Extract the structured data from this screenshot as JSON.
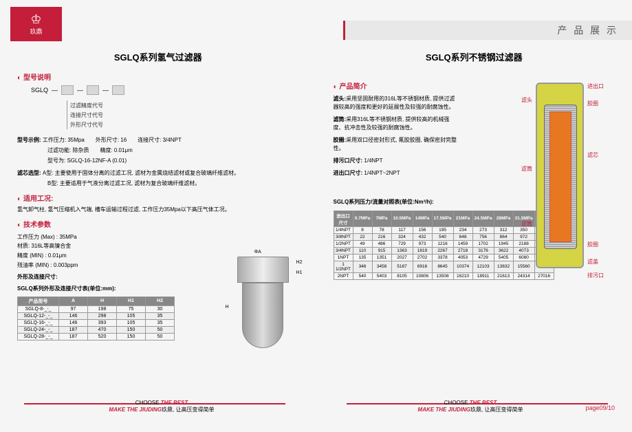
{
  "header": {
    "logo_text": "玖鼎",
    "title": "产 品 展 示"
  },
  "left": {
    "title": "SGLQ系列氢气过滤器",
    "s1": "型号说明",
    "model_prefix": "SGLQ",
    "model_labels": [
      "过滤精度代号",
      "连接尺寸代号",
      "外形尺寸代号"
    ],
    "example_label": "型号示例:",
    "example_lines": [
      "工作压力: 35Mpa　　外形尺寸: 16　　连接尺寸: 3/4NPT",
      "过滤功能: 除杂质　　精度: 0.01μm",
      "型号为: SGLQ-16-12NF-A (0.01)"
    ],
    "cartridge_label": "滤芯选型:",
    "cartridge_a": "A型: 主要使用于固体分离的过滤工况, 滤材为金属烧结滤材或复合玻璃纤维滤材。",
    "cartridge_b": "B型: 主要适用于气液分离过滤工况, 滤材为复合玻璃纤维滤材。",
    "s2": "适用工况:",
    "usage": "氢气卸气柱, 氢气压缩机入气端, 槽车运输过程过滤, 工作压力35Mpa以下高压气体工况。",
    "s3": "技术参数",
    "params": [
      "工作压力 (Max) : 35MPa",
      "材质: 316L等高镍合金",
      "精度 (MIN) : 0.01μm",
      "残油率 (MIN) : 0.003ppm"
    ],
    "dim_title": "外形及连接尺寸:",
    "dim_table_title": "SGLQ系列外形及连接尺寸表(单位:mm):",
    "dim_headers": [
      "产品型号",
      "A",
      "H",
      "H1",
      "H2"
    ],
    "dim_rows": [
      [
        "SGLQ-8-_-_",
        "97",
        "198",
        "75",
        "30"
      ],
      [
        "SGLQ-12-_-_",
        "146",
        "298",
        "105",
        "35"
      ],
      [
        "SGLQ-16-_-_",
        "146",
        "393",
        "105",
        "35"
      ],
      [
        "SGLQ-24-_-_",
        "187",
        "470",
        "150",
        "50"
      ],
      [
        "SGLQ-28-_-_",
        "187",
        "520",
        "150",
        "50"
      ]
    ],
    "part_labels": {
      "a": "ΦA",
      "h": "H",
      "h1": "H1",
      "h2": "H2"
    }
  },
  "right": {
    "title": "SGLQ系列不锈钢过滤器",
    "s1": "产品简介",
    "desc": [
      {
        "b": "滤头:",
        "t": "采用坚固耐用的316L等不锈钢材质, 提供过滤器较高的强度和更好的延展性及较强的耐腐蚀性。"
      },
      {
        "b": "滤筒:",
        "t": "采用316L等不锈钢材质, 提供较高的机械强度、抗冲击性及较强的耐腐蚀性。"
      },
      {
        "b": "胶圈:",
        "t": "采用双口径密封形式, 氟胶胶圈, 确保密封完整性。"
      }
    ],
    "drain_label": "排污口尺寸:",
    "drain_val": "1/4NPT",
    "port_label": "进出口尺寸:",
    "port_val": "1/4NPT~2NPT",
    "callouts_l": [
      "滤头",
      "滤筒",
      "滤筒"
    ],
    "callouts_r": [
      "进出口",
      "胶圈",
      "滤芯",
      "胶圈",
      "滤盖",
      "排污口"
    ],
    "flow_title": "SGLQ系列压力/流量对照表(单位:Nm³/h):",
    "flow_headers": [
      "进出口尺寸",
      "0.7MPa",
      "7MPa",
      "10.5MPa",
      "14MPa",
      "17.5MPa",
      "21MPa",
      "24.5MPa",
      "28MPa",
      "31.5MPa",
      "35MPa"
    ],
    "flow_rows": [
      [
        "1/4NPT",
        "8",
        "78",
        "117",
        "156",
        "195",
        "234",
        "273",
        "312",
        "350",
        "389"
      ],
      [
        "3/8NPT",
        "22",
        "216",
        "324",
        "432",
        "540",
        "648",
        "756",
        "864",
        "972",
        "1080"
      ],
      [
        "1/2NPT",
        "49",
        "486",
        "729",
        "973",
        "1216",
        "1459",
        "1702",
        "1945",
        "2188",
        "2431"
      ],
      [
        "3/4NPT",
        "110",
        "915",
        "1363",
        "1819",
        "2267",
        "2718",
        "3176",
        "3622",
        "4073",
        "4357"
      ],
      [
        "1NPT",
        "135",
        "1351",
        "2027",
        "2702",
        "3378",
        "4053",
        "4729",
        "5405",
        "6080",
        "6756"
      ],
      [
        "1 1/2NPT",
        "346",
        "3458",
        "5187",
        "6916",
        "8645",
        "10374",
        "12103",
        "13832",
        "15560",
        "17290"
      ],
      [
        "2NPT",
        "540",
        "5403",
        "8105",
        "10806",
        "13508",
        "16210",
        "18911",
        "21613",
        "24314",
        "27016"
      ]
    ]
  },
  "footer": {
    "line1": "CHOOSE ",
    "line1r": "THE BEST",
    "line2": "MAKE THE JIUDING",
    "line2s": "玖鼎, 让高压变得简单",
    "page": "page09/10"
  }
}
